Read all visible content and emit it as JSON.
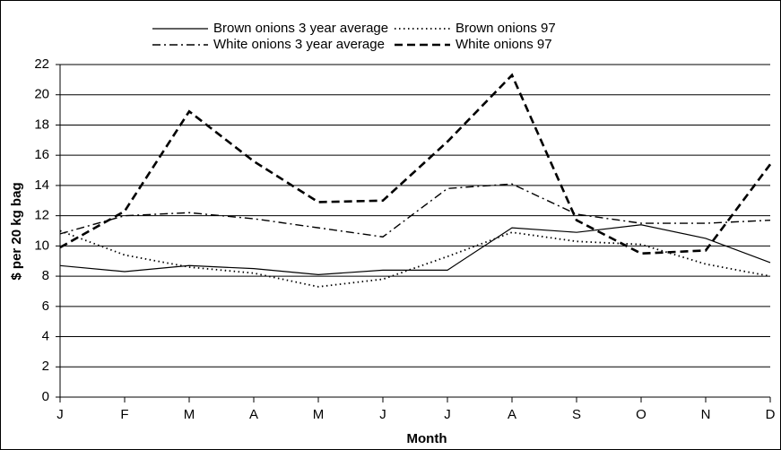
{
  "chart_data": {
    "type": "line",
    "x_label": "Month",
    "y_label": "$ per 20 kg bag",
    "categories": [
      "J",
      "F",
      "M",
      "A",
      "M",
      "J",
      "J",
      "A",
      "S",
      "O",
      "N",
      "D"
    ],
    "series": [
      {
        "name": "Brown onions 3 year average",
        "color": "#000000",
        "dash": "solid",
        "values": [
          8.7,
          8.3,
          8.7,
          8.5,
          8.1,
          8.4,
          8.4,
          11.2,
          10.9,
          11.4,
          10.5,
          8.9
        ]
      },
      {
        "name": "Brown onions 97",
        "color": "#000000",
        "dash": "dotted",
        "values": [
          11.0,
          9.4,
          8.6,
          8.2,
          7.3,
          7.8,
          9.3,
          10.9,
          10.3,
          10.1,
          8.8,
          8.0
        ]
      },
      {
        "name": "White onions 3 year average",
        "color": "#000000",
        "dash": "dashdot",
        "values": [
          10.8,
          12.0,
          12.2,
          11.8,
          11.2,
          10.6,
          13.8,
          14.1,
          12.1,
          11.5,
          11.5,
          11.7
        ]
      },
      {
        "name": "White onions 97",
        "color": "#000000",
        "dash": "dashed",
        "values": [
          9.9,
          12.3,
          18.9,
          15.6,
          12.9,
          13.0,
          16.9,
          21.3,
          11.7,
          9.5,
          9.7,
          15.4
        ]
      }
    ],
    "ylim": [
      0,
      22
    ],
    "yticks": [
      0,
      2,
      4,
      6,
      8,
      10,
      12,
      14,
      16,
      18,
      20,
      22
    ],
    "grid": true
  }
}
